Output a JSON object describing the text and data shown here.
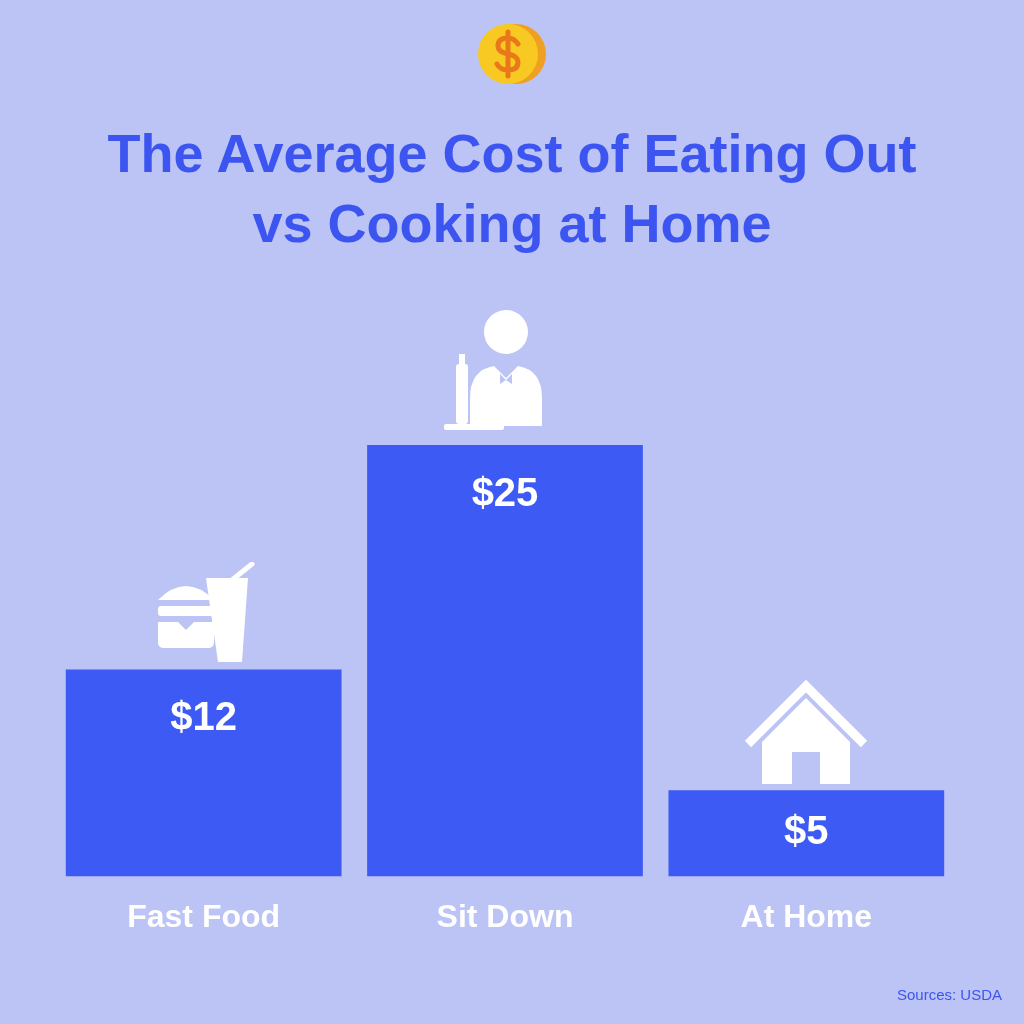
{
  "chart_data": {
    "type": "bar",
    "title": "The Average Cost of Eating Out vs Cooking at Home",
    "categories": [
      "Fast Food",
      "Sit Down",
      "At Home"
    ],
    "values": [
      12,
      25,
      5
    ],
    "value_labels": [
      "$12",
      "$25",
      "$5"
    ],
    "color": "#3d5af5",
    "ylim": [
      0,
      25
    ],
    "tick_labels": "x",
    "grid": false,
    "annotations": [
      "Sources: USDA"
    ]
  }
}
